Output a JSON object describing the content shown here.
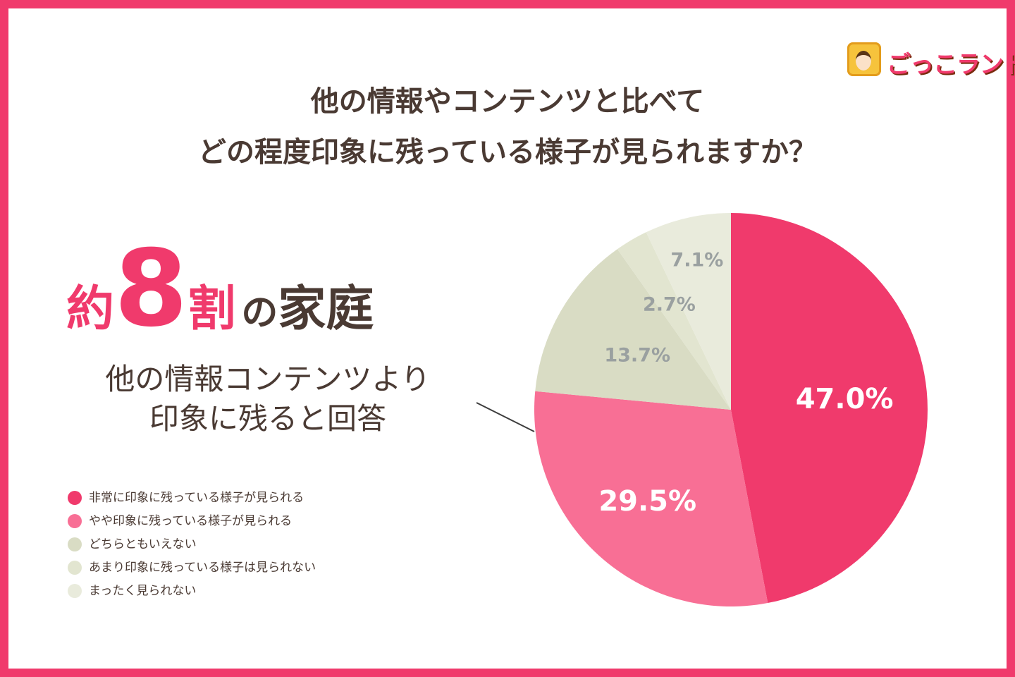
{
  "logo": {
    "text": "ごっこランド"
  },
  "chart_data": {
    "type": "pie",
    "title_lines": [
      "他の情報やコンテンツと比べて",
      "どの程度印象に残っている様子が見られますか？"
    ],
    "headline": {
      "pre": "約",
      "number": "8",
      "post": "割",
      "particle": "の",
      "tail": "家庭"
    },
    "subtitle_lines": [
      "他の情報コンテンツより",
      "印象に残ると回答"
    ],
    "categories": [
      "非常に印象に残っている様子が見られる",
      "やや印象に残っている様子が見られる",
      "どちらともいえない",
      "あまり印象に残っている様子は見られない",
      "まったく見られない"
    ],
    "values": [
      47.0,
      29.5,
      13.7,
      2.7,
      7.1
    ],
    "labels": [
      "47.0%",
      "29.5%",
      "13.7%",
      "2.7%",
      "7.1%"
    ],
    "colors": [
      "#f03a6c",
      "#f86f95",
      "#d9dcc4",
      "#e2e5d0",
      "#e9ebdc"
    ],
    "label_colors": [
      "#ffffff",
      "#ffffff",
      "#9aa0a0",
      "#9aa0a0",
      "#9aa0a0"
    ],
    "legend_placement": "bottom-left"
  }
}
